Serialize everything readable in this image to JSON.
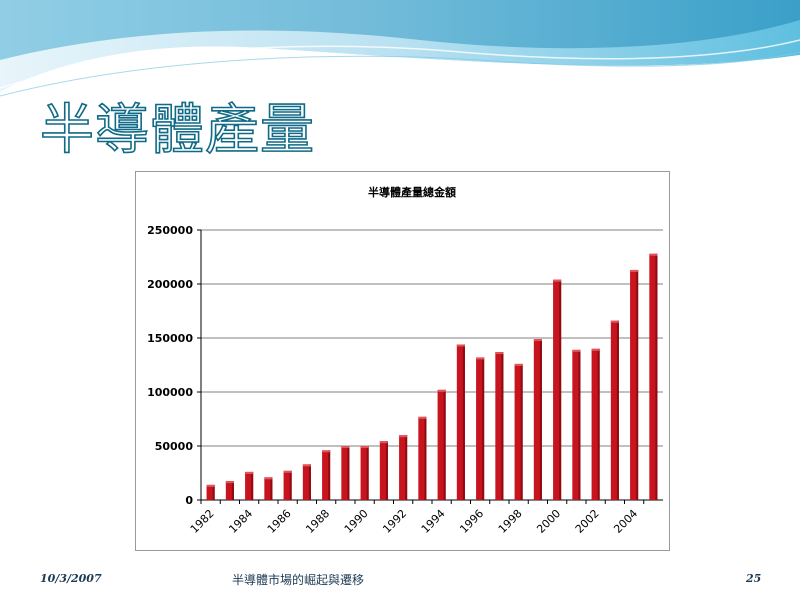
{
  "slide": {
    "title": "半導體產量",
    "footer_date": "10/3/2007",
    "footer_center": "半導體市場的崛起與遷移",
    "page_number": "25"
  },
  "colors": {
    "bar": "#c8141e",
    "bar_dark": "#8e0b12",
    "title_outline": "#0f6a86",
    "swoosh_light": "#bfe3f2",
    "swoosh_dark": "#2a9ac3"
  },
  "chart_data": {
    "type": "bar",
    "title": "半導體產量總金額",
    "xlabel": "",
    "ylabel": "",
    "ylim": [
      0,
      250000
    ],
    "yticks": [
      0,
      50000,
      100000,
      150000,
      200000,
      250000
    ],
    "grid": true,
    "legend": "none",
    "categories": [
      "1982",
      "1983",
      "1984",
      "1985",
      "1986",
      "1987",
      "1988",
      "1989",
      "1990",
      "1991",
      "1992",
      "1993",
      "1994",
      "1995",
      "1996",
      "1997",
      "1998",
      "1999",
      "2000",
      "2001",
      "2002",
      "2003",
      "2004",
      "2005"
    ],
    "category_labels_shown": [
      "1982",
      "1984",
      "1986",
      "1988",
      "1990",
      "1992",
      "1994",
      "1996",
      "1998",
      "2000",
      "2002",
      "2004"
    ],
    "values": [
      14000,
      17500,
      26000,
      21000,
      27000,
      33000,
      46000,
      50000,
      50000,
      54500,
      60000,
      77000,
      102000,
      144000,
      132000,
      137000,
      126000,
      149000,
      204000,
      139000,
      140000,
      166000,
      213000,
      228000
    ]
  }
}
